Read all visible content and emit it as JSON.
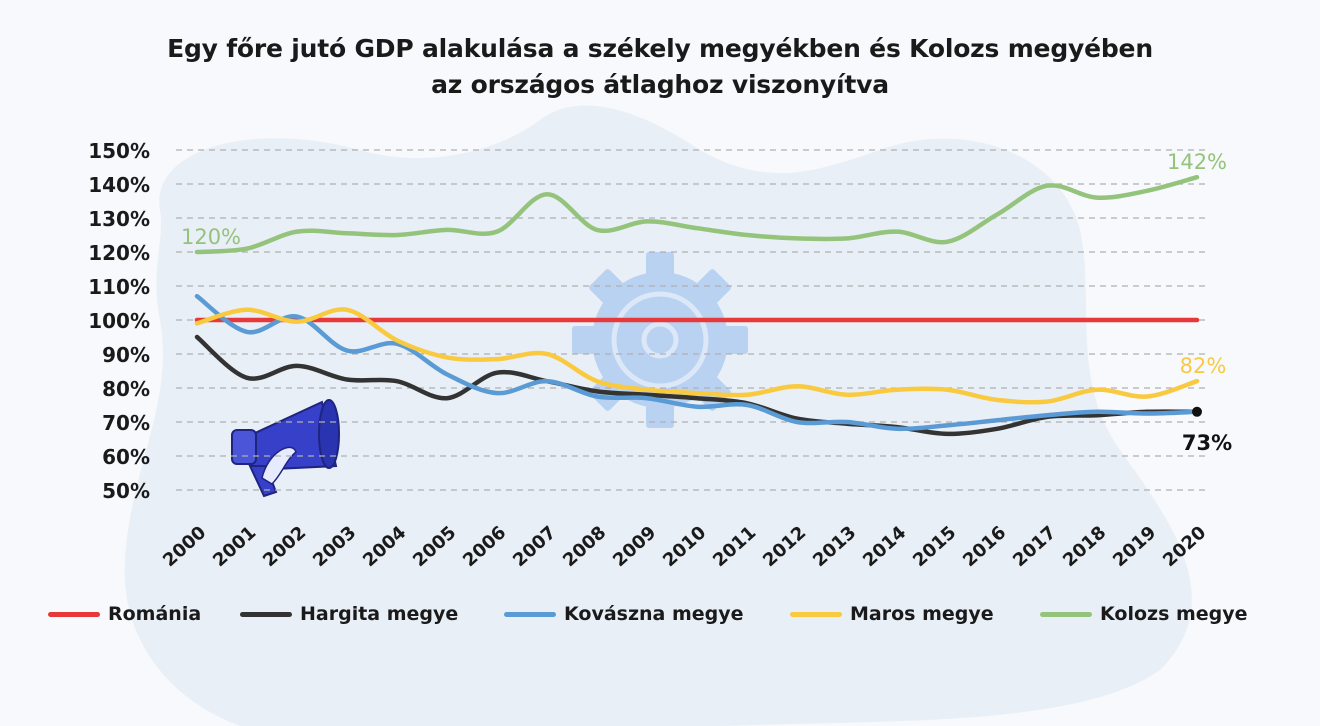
{
  "chart_data": {
    "type": "line",
    "title": "Egy főre jutó GDP alakulása a székely megyékben és Kolozs megyében",
    "subtitle": "az országos átlaghoz viszonyítva",
    "x": [
      "2000",
      "2001",
      "2002",
      "2003",
      "2004",
      "2005",
      "2006",
      "2007",
      "2008",
      "2009",
      "2010",
      "2011",
      "2012",
      "2013",
      "2014",
      "2015",
      "2016",
      "2017",
      "2018",
      "2019",
      "2020"
    ],
    "ylim": [
      50,
      150
    ],
    "y_ticks": [
      "50%",
      "60%",
      "70%",
      "80%",
      "90%",
      "100%",
      "110%",
      "120%",
      "130%",
      "140%",
      "150%"
    ],
    "grid": true,
    "legend_position": "bottom",
    "series": [
      {
        "name": "Románia",
        "color": "#e8393a",
        "values": [
          100,
          100,
          100,
          100,
          100,
          100,
          100,
          100,
          100,
          100,
          100,
          100,
          100,
          100,
          100,
          100,
          100,
          100,
          100,
          100,
          100
        ]
      },
      {
        "name": "Hargita megye",
        "color": "#333333",
        "values": [
          95,
          83,
          86.5,
          82.5,
          82,
          77,
          84.5,
          82,
          79,
          78,
          77,
          75.5,
          71,
          69.5,
          68.5,
          66.5,
          68,
          71.5,
          72,
          73,
          73
        ]
      },
      {
        "name": "Kovászna megye",
        "color": "#5a9bd5",
        "values": [
          107,
          96.5,
          101,
          91,
          93,
          84,
          78.5,
          82,
          77.5,
          77,
          74.5,
          75,
          70,
          70,
          68,
          69,
          70.5,
          72,
          73,
          72.5,
          73
        ]
      },
      {
        "name": "Maros megye",
        "color": "#f9c940",
        "values": [
          99,
          103,
          99.5,
          103,
          94,
          89,
          88.5,
          90,
          82,
          79.5,
          78.5,
          78,
          80.5,
          78,
          79.5,
          79.5,
          76.5,
          76,
          79.5,
          77.5,
          82
        ]
      },
      {
        "name": "Kolozs megye",
        "color": "#94c37c",
        "values": [
          120,
          121,
          126,
          125.5,
          125,
          126.5,
          126,
          137,
          126.5,
          129,
          127,
          125,
          124,
          124,
          126,
          123,
          131,
          139.5,
          136,
          138,
          142
        ]
      }
    ],
    "annotations": [
      {
        "text": "120%",
        "series": "Kolozs megye",
        "x": "2000",
        "y": 120
      },
      {
        "text": "142%",
        "series": "Kolozs megye",
        "x": "2020",
        "y": 142
      },
      {
        "text": "82%",
        "series": "Maros megye",
        "x": "2020",
        "y": 82
      },
      {
        "text": "73%",
        "series": "Hargita megye",
        "x": "2020",
        "y": 73
      }
    ]
  }
}
